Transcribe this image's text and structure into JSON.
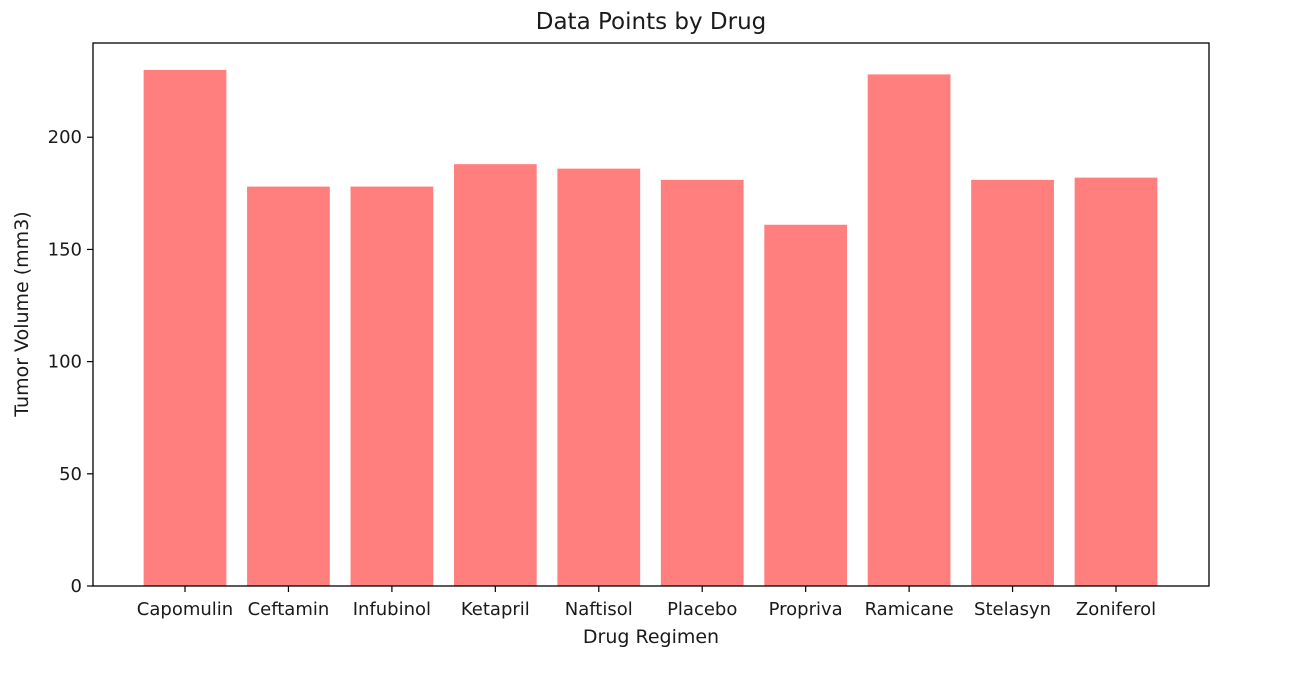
{
  "chart_data": {
    "type": "bar",
    "title": "Data Points by Drug",
    "xlabel": "Drug Regimen",
    "ylabel": "Tumor Volume (mm3)",
    "categories": [
      "Capomulin",
      "Ceftamin",
      "Infubinol",
      "Ketapril",
      "Naftisol",
      "Placebo",
      "Propriva",
      "Ramicane",
      "Stelasyn",
      "Zoniferol"
    ],
    "values": [
      230,
      178,
      178,
      188,
      186,
      181,
      161,
      228,
      181,
      182
    ],
    "ylim": [
      0,
      242
    ],
    "yticks": [
      0,
      50,
      100,
      150,
      200
    ],
    "grid": false,
    "bar_color": "#ff7f7f"
  }
}
